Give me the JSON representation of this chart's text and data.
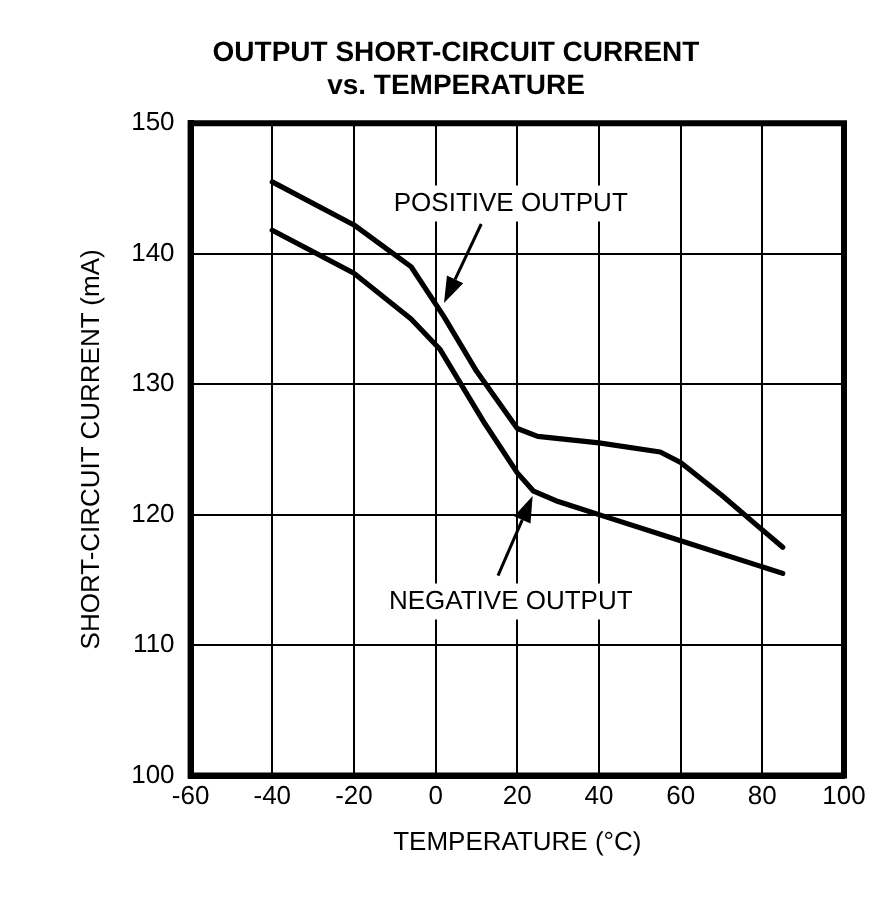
{
  "chart_data": {
    "type": "line",
    "title": "OUTPUT SHORT-CIRCUIT CURRENT\nvs. TEMPERATURE",
    "xlabel": "TEMPERATURE (°C)",
    "ylabel": "SHORT-CIRCUIT CURRENT (mA)",
    "series": [
      {
        "color": "#000000",
        "x": [
          -40,
          -20,
          -6,
          2,
          10,
          20,
          25,
          40,
          55,
          60,
          70,
          85
        ],
        "values": [
          145.5,
          142.2,
          139,
          135.2,
          131,
          126.6,
          126,
          125.5,
          124.8,
          124,
          121.5,
          117.5
        ]
      },
      {
        "color": "#000000",
        "x": [
          -40,
          -20,
          -6,
          1,
          12,
          20,
          24,
          30,
          40,
          60,
          85
        ],
        "values": [
          141.8,
          138.5,
          135,
          132.7,
          127,
          123.2,
          121.8,
          121,
          120,
          118,
          115.5
        ]
      }
    ],
    "annotations": [
      "POSITIVE OUTPUT",
      "NEGATIVE OUTPUT"
    ],
    "xlim": [
      -60,
      100
    ],
    "xticks": [
      -60,
      -40,
      -20,
      0,
      20,
      40,
      60,
      80,
      100
    ],
    "ylim": [
      100,
      150
    ],
    "yticks": [
      100,
      110,
      120,
      130,
      140,
      150
    ],
    "grid": true,
    "legend": false,
    "marker": "none",
    "line_style": "solid"
  }
}
